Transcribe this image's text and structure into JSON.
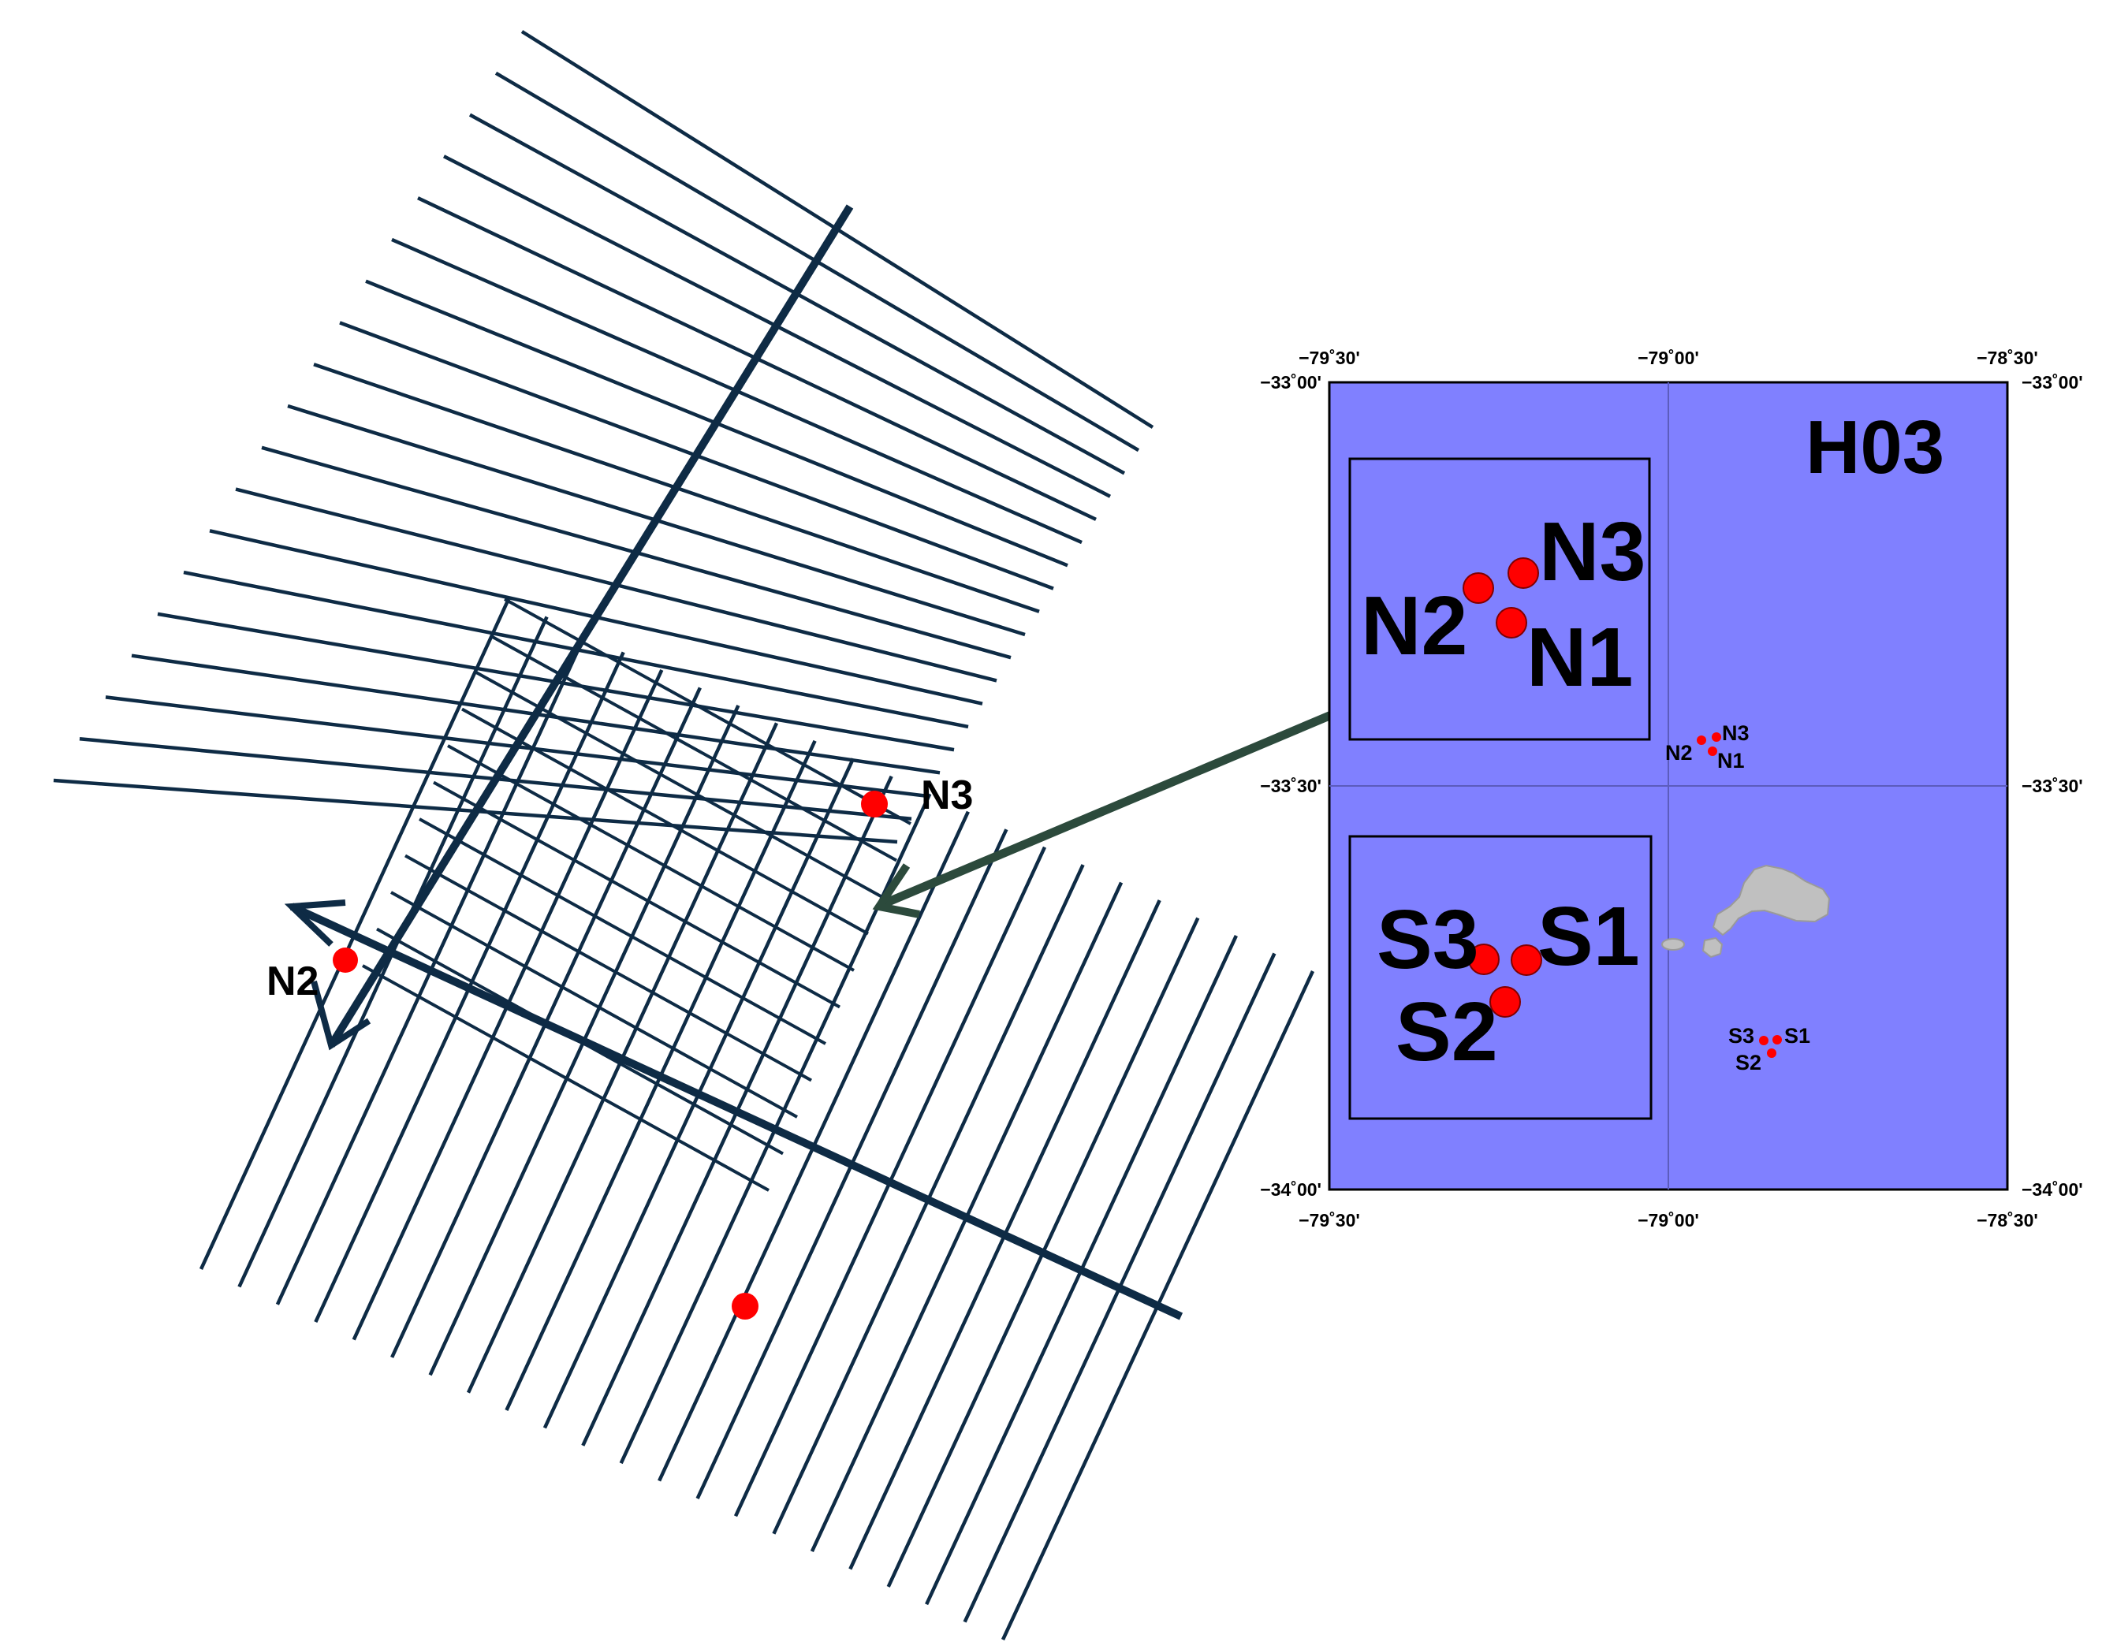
{
  "colors": {
    "survey_line": "#0e2b45",
    "map_water": "#8080ff",
    "site_dot": "#ff0000",
    "island": "#c0c0c0",
    "connector_arrow": "#2c4a3c"
  },
  "icons": [
    "site-marker-icon",
    "arrowhead-icon"
  ],
  "survey": {
    "labels": {
      "n3": "N3",
      "n2": "N2"
    }
  },
  "map": {
    "title": "H03",
    "ticks": {
      "lon_west": "−79˚30'",
      "lon_mid": "−79˚00'",
      "lon_east": "−78˚30'",
      "lat_north": "−33˚00'",
      "lat_mid": "−33˚30'",
      "lat_south": "−34˚00'"
    },
    "north_inset": {
      "n1": "N1",
      "n2": "N2",
      "n3": "N3"
    },
    "south_inset": {
      "s1": "S1",
      "s2": "S2",
      "s3": "S3"
    },
    "north_sites": {
      "n1": "N1",
      "n2": "N2",
      "n3": "N3"
    },
    "south_sites": {
      "s1": "S1",
      "s2": "S2",
      "s3": "S3"
    }
  }
}
